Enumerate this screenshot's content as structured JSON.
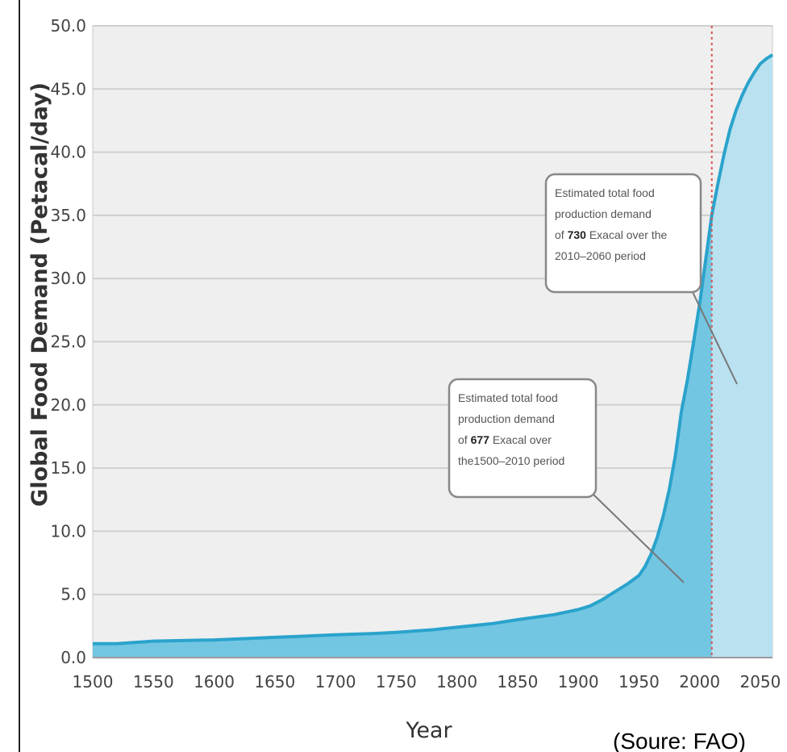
{
  "chart_data": {
    "type": "area",
    "xlabel": "Year",
    "ylabel": "Global Food Demand (Petacal/day)",
    "xlim": [
      1500,
      2060
    ],
    "ylim": [
      0,
      50
    ],
    "x_ticks": [
      "1500",
      "1550",
      "1600",
      "1650",
      "1700",
      "1750",
      "1800",
      "1850",
      "1900",
      "1950",
      "2000",
      "2050"
    ],
    "y_ticks": [
      "0.0",
      "5.0",
      "10.0",
      "15.0",
      "20.0",
      "25.0",
      "30.0",
      "35.0",
      "40.0",
      "45.0",
      "50.0"
    ],
    "grid": "horizontal",
    "divider_year": 2010,
    "colors": {
      "line": "#2aa3cc",
      "fill_historical": "#72c6e2",
      "fill_projected": "#b9e1f0",
      "plot_background": "#efefef",
      "grid": "#cfcfcf",
      "divider": "#d9534f"
    },
    "series": [
      {
        "x": [
          1500,
          1520,
          1550,
          1600,
          1650,
          1700,
          1730,
          1750,
          1780,
          1800,
          1830,
          1850,
          1880,
          1900,
          1910,
          1920,
          1930,
          1940,
          1950,
          1955,
          1960,
          1965,
          1970,
          1975,
          1980,
          1985,
          1990,
          1995,
          2000,
          2005,
          2010,
          2015,
          2020,
          2025,
          2030,
          2035,
          2040,
          2045,
          2050,
          2055,
          2060
        ],
        "y": [
          1.1,
          1.1,
          1.3,
          1.4,
          1.6,
          1.8,
          1.9,
          2.0,
          2.2,
          2.4,
          2.7,
          3.0,
          3.4,
          3.8,
          4.1,
          4.6,
          5.2,
          5.8,
          6.5,
          7.2,
          8.2,
          9.5,
          11.2,
          13.3,
          16.0,
          19.5,
          22.0,
          25.0,
          28.0,
          31.5,
          35.0,
          37.5,
          39.8,
          41.8,
          43.3,
          44.5,
          45.5,
          46.3,
          47.0,
          47.4,
          47.7
        ]
      }
    ],
    "annotations": [
      {
        "lines": [
          [
            {
              "text": "Estimated total food",
              "bold": false
            }
          ],
          [
            {
              "text": "production demand",
              "bold": false
            }
          ],
          [
            {
              "text": "of ",
              "bold": false
            },
            {
              "text": "677",
              "bold": true
            },
            {
              "text": " Exacal over",
              "bold": false
            }
          ],
          [
            {
              "text": "the1500–2010 period",
              "bold": false
            }
          ]
        ]
      },
      {
        "lines": [
          [
            {
              "text": "Estimated total food",
              "bold": false
            }
          ],
          [
            {
              "text": "production demand",
              "bold": false
            }
          ],
          [
            {
              "text": "of ",
              "bold": false
            },
            {
              "text": "730",
              "bold": true
            },
            {
              "text": " Exacal over the",
              "bold": false
            }
          ],
          [
            {
              "text": "2010–2060 period",
              "bold": false
            }
          ]
        ]
      }
    ]
  },
  "source_note": "(Soure: FAO)"
}
